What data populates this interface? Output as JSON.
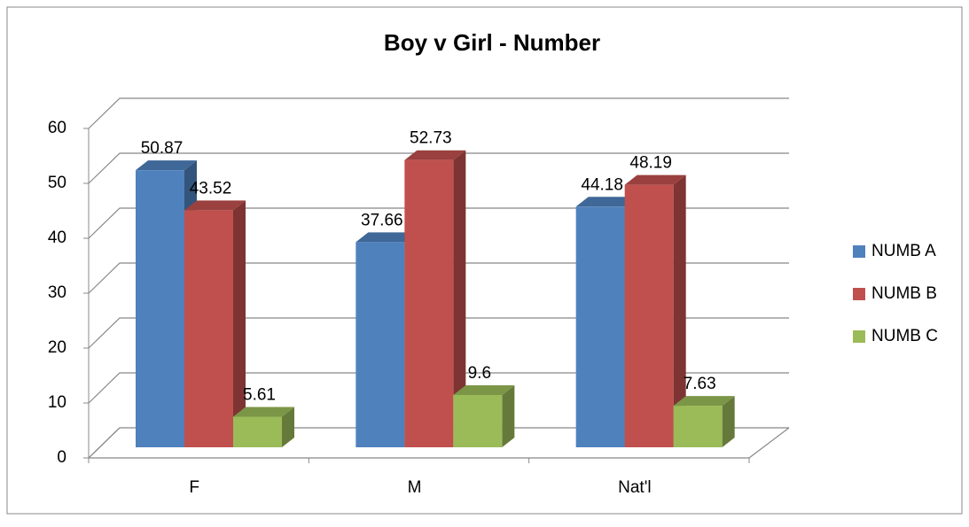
{
  "chart_data": {
    "type": "bar3d",
    "title": "Boy v Girl - Number",
    "categories": [
      "F",
      "M",
      "Nat'l"
    ],
    "series": [
      {
        "name": "NUMB A",
        "color": "#4f81bd",
        "values": [
          50.87,
          37.66,
          44.18
        ]
      },
      {
        "name": "NUMB B",
        "color": "#c0504d",
        "values": [
          43.52,
          52.73,
          48.19
        ]
      },
      {
        "name": "NUMB C",
        "color": "#9bbb59",
        "values": [
          5.61,
          9.6,
          7.63
        ]
      }
    ],
    "ylim": [
      0,
      60
    ],
    "yticks": [
      0,
      10,
      20,
      30,
      40,
      50,
      60
    ],
    "grid": true,
    "legend": "right"
  }
}
